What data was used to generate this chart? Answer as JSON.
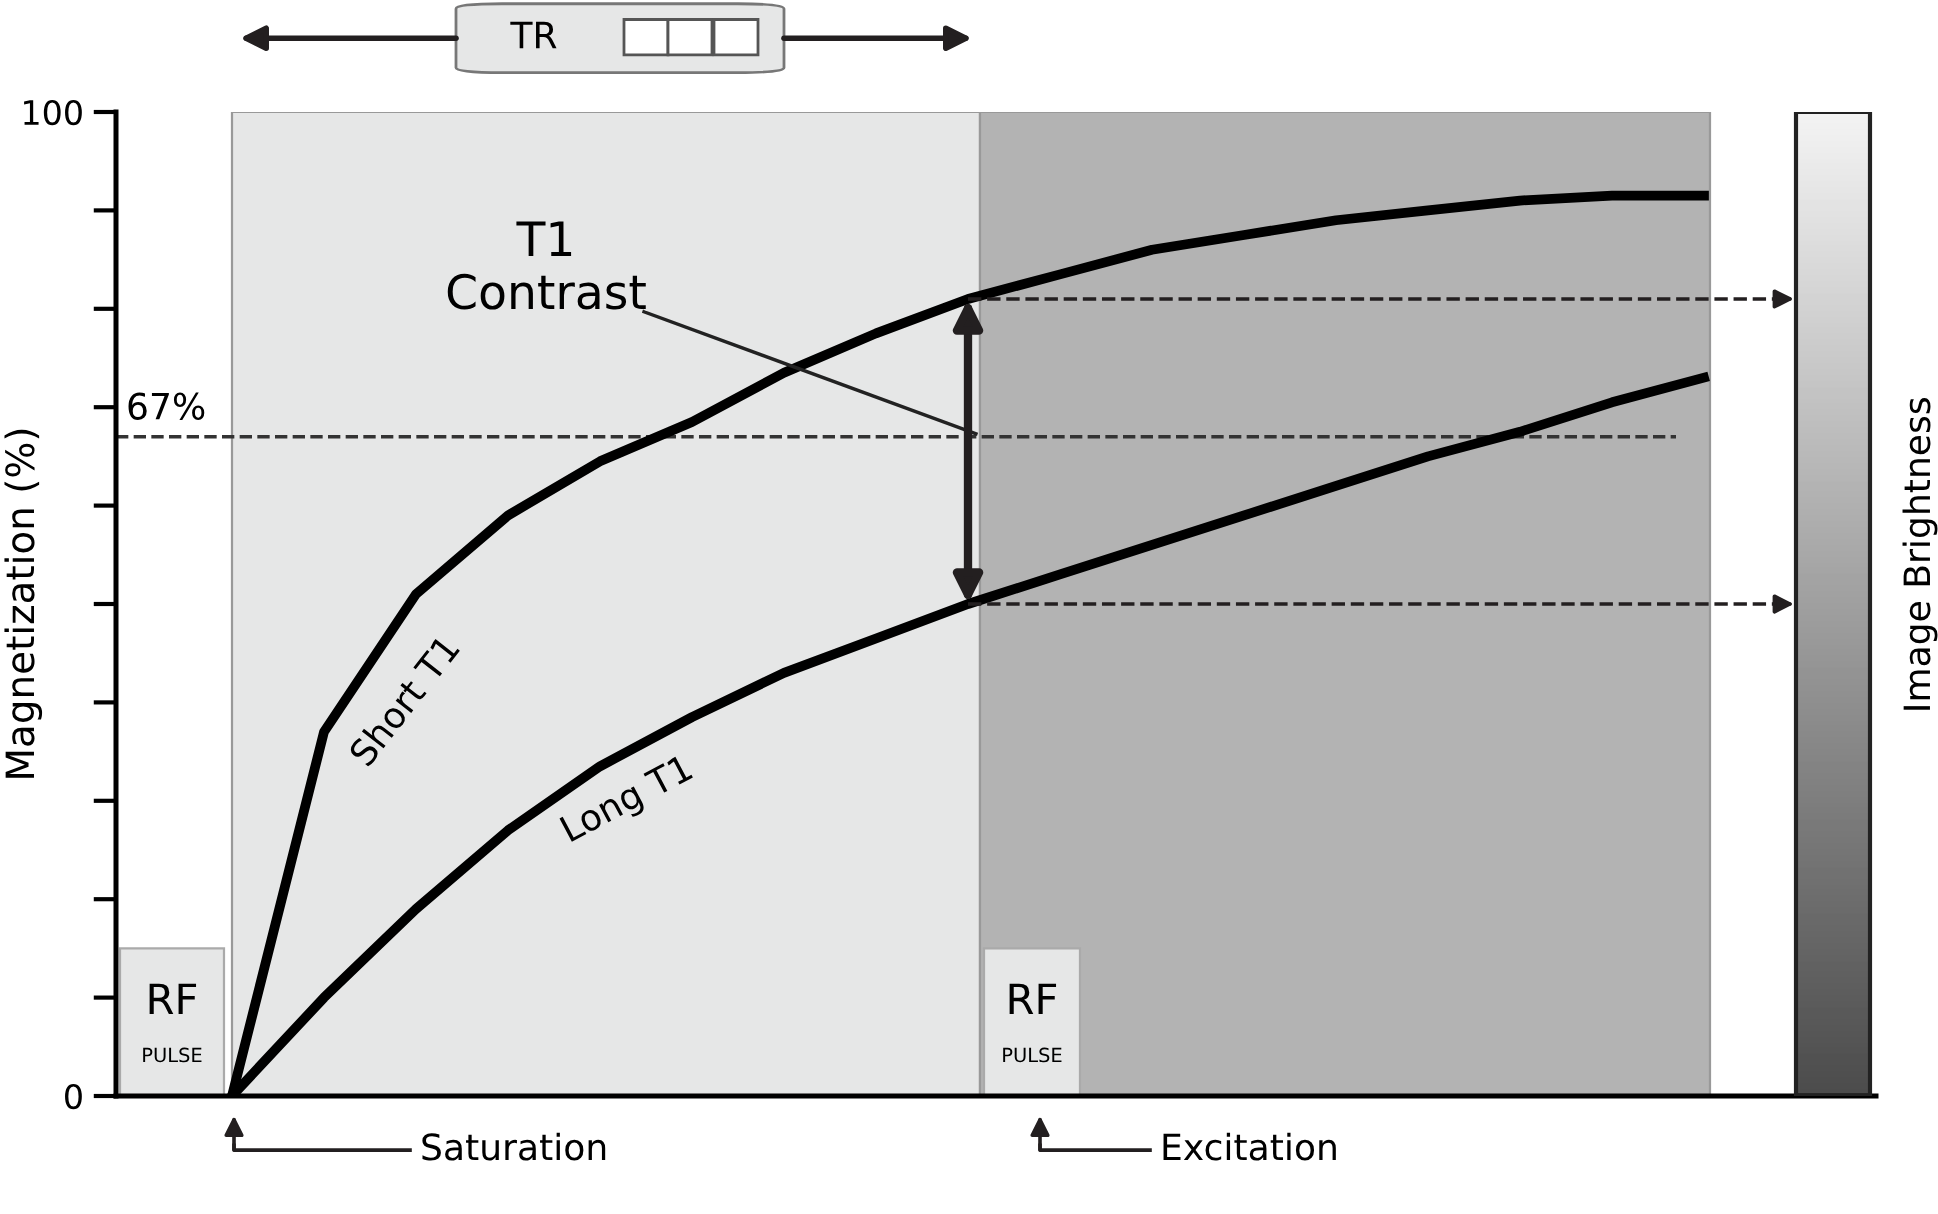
{
  "chart_data": {
    "type": "line",
    "ylabel": "Magnetization (%)",
    "clabel": "Image Brightness",
    "categories": [
      null,
      null,
      null,
      null,
      null,
      null,
      null,
      null,
      null,
      null,
      null,
      null,
      null,
      null,
      null,
      null,
      null
    ],
    "series": [
      {
        "name": "Short T1",
        "color": "#000000",
        "values": [
          0,
          37,
          51,
          59,
          64.5,
          68.5,
          73.5,
          77.5,
          81,
          83.5,
          86,
          87.5,
          89,
          90,
          91,
          91.5,
          91.5
        ]
      },
      {
        "name": "Long T1",
        "color": "#000000",
        "values": [
          0,
          10,
          19,
          27,
          33.5,
          38.5,
          43,
          46.5,
          50,
          53,
          56,
          59,
          62,
          65,
          67.5,
          70.5,
          73
        ]
      }
    ],
    "ylim": [
      0,
      100
    ],
    "yticks": [
      0,
      {
        "value": 10,
        "label": null
      },
      {
        "value": 20,
        "label": null
      },
      {
        "value": 30,
        "label": null
      },
      {
        "value": 40,
        "label": null
      },
      {
        "value": 50,
        "label": null
      },
      {
        "value": 60,
        "label": null
      },
      {
        "value": 70,
        "label": null
      },
      {
        "value": 80,
        "label": null
      },
      {
        "value": 90,
        "label": null
      },
      100
    ],
    "ref_lines": [
      {
        "axis": "y",
        "value": 67,
        "label": "67%",
        "color": "#333333",
        "line_style": "dashed"
      },
      {
        "axis": "y",
        "value": 81,
        "color": "#231f20",
        "line_style": "dashed"
      },
      {
        "axis": "y",
        "value": 50,
        "color": "#231f20",
        "line_style": "dashed"
      }
    ],
    "annotations": [
      "T1\nContrast",
      "RF",
      "PULSE",
      "RF",
      "PULSE",
      "TR",
      "Saturation",
      "Excitation"
    ],
    "tick_labels": "y",
    "grid": false,
    "legend": false,
    "marker": "none",
    "line_style": "solid"
  }
}
